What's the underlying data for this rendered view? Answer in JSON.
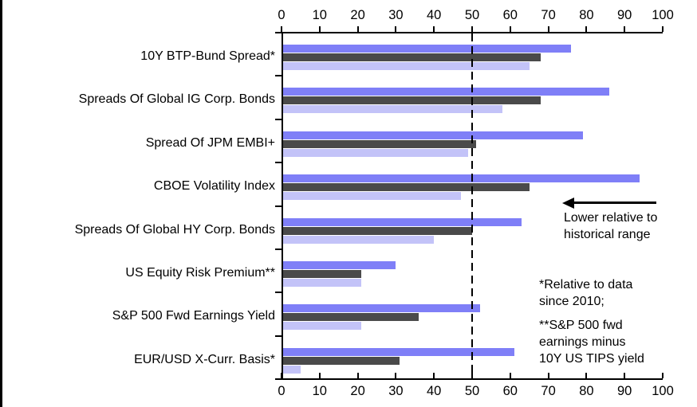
{
  "chart_data": {
    "type": "bar",
    "orientation": "horizontal",
    "title": "",
    "categories": [
      "10Y BTP-Bund Spread*",
      "Spreads Of Global IG Corp. Bonds",
      "Spread Of JPM EMBI+",
      "CBOE Volatility Index",
      "Spreads Of Global HY Corp. Bonds",
      "US Equity Risk Premium**",
      "S&P 500 Fwd Earnings Yield",
      "EUR/USD X-Curr. Basis*"
    ],
    "series": [
      {
        "key": "blue",
        "color": "#7f7ff7",
        "values": [
          76,
          86,
          79,
          94,
          63,
          30,
          52,
          61
        ]
      },
      {
        "key": "dark-gray",
        "color": "#4a4a4a",
        "values": [
          68,
          68,
          51,
          65,
          50,
          21,
          36,
          31
        ]
      },
      {
        "key": "light-lavender",
        "color": "#c3c3f8",
        "values": [
          65,
          58,
          49,
          47,
          40,
          21,
          21,
          5
        ]
      }
    ],
    "xlim": [
      0,
      100
    ],
    "tick_step": 10,
    "axis_tick_labels": [
      "0",
      "10",
      "20",
      "30",
      "40",
      "50",
      "60",
      "70",
      "80",
      "90",
      "100"
    ],
    "reference_line_value": 50,
    "axes": "x-axis ticks shown on top and bottom, no gridlines",
    "legend": "none"
  },
  "annotations": {
    "arrow_note": "Lower relative to\nhistorical range",
    "footnote_1": "*Relative to data\nsince 2010;",
    "footnote_2": "**S&P 500 fwd\nearnings minus\n10Y US TIPS yield"
  },
  "colors": {
    "axis": "#000000",
    "background": "#ffffff",
    "reference_line": "#000000"
  }
}
